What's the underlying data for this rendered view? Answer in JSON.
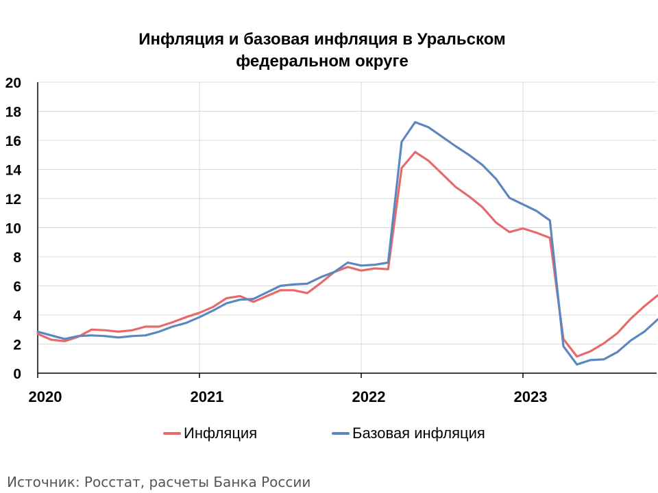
{
  "title_line1": "Инфляция и базовая инфляция в Уральском",
  "title_line2": "федеральном округе",
  "source": "Источник: Росстат, расчеты Банка России",
  "chart_data": {
    "type": "line",
    "title": "Инфляция и базовая инфляция в Уральском федеральном округе",
    "xlabel": "",
    "ylabel": "",
    "ylim": [
      0,
      20
    ],
    "yticks": [
      0,
      2,
      4,
      6,
      8,
      10,
      12,
      14,
      16,
      18,
      20
    ],
    "xticks": [
      "2020",
      "2021",
      "2022",
      "2023"
    ],
    "x_start": "2020-01",
    "grid": true,
    "legend_position": "bottom",
    "series": [
      {
        "name": "Инфляция",
        "color": "#e8696b",
        "values": [
          2.7,
          2.3,
          2.2,
          2.5,
          3.0,
          2.95,
          2.85,
          2.95,
          3.2,
          3.2,
          3.5,
          3.85,
          4.15,
          4.55,
          5.15,
          5.3,
          4.9,
          5.3,
          5.7,
          5.7,
          5.5,
          6.2,
          6.95,
          7.3,
          7.05,
          7.2,
          7.15,
          14.1,
          15.2,
          14.6,
          13.7,
          12.8,
          12.15,
          11.4,
          10.35,
          9.7,
          9.95,
          9.65,
          9.3,
          2.35,
          1.15,
          1.5,
          2.05,
          2.75,
          3.75,
          4.6,
          5.35
        ]
      },
      {
        "name": "Базовая инфляция",
        "color": "#5b87c0",
        "values": [
          2.85,
          2.6,
          2.35,
          2.55,
          2.6,
          2.55,
          2.45,
          2.55,
          2.6,
          2.85,
          3.2,
          3.45,
          3.85,
          4.3,
          4.8,
          5.05,
          5.1,
          5.55,
          6.0,
          6.1,
          6.15,
          6.6,
          6.95,
          7.6,
          7.4,
          7.45,
          7.6,
          15.9,
          17.25,
          16.9,
          16.25,
          15.6,
          15.0,
          14.3,
          13.35,
          12.05,
          11.6,
          11.15,
          10.5,
          1.85,
          0.6,
          0.9,
          0.95,
          1.45,
          2.25,
          2.85,
          3.7
        ]
      }
    ]
  }
}
